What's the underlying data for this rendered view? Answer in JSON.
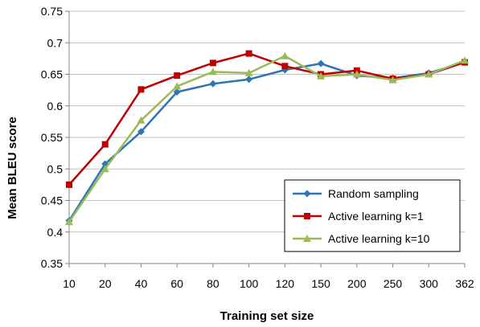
{
  "chart_data": {
    "type": "line",
    "title": "",
    "xlabel": "Training set size",
    "ylabel": "Mean BLEU score",
    "categories": [
      "10",
      "20",
      "40",
      "60",
      "80",
      "100",
      "120",
      "150",
      "200",
      "250",
      "300",
      "362"
    ],
    "yticks": [
      "0.35",
      "0.4",
      "0.45",
      "0.5",
      "0.55",
      "0.6",
      "0.65",
      "0.7",
      "0.75"
    ],
    "ylim": [
      0.35,
      0.75
    ],
    "grid": "horizontal",
    "legend_position": "bottom-right",
    "series": [
      {
        "name": "Random sampling",
        "color": "#2E75B6",
        "marker": "diamond",
        "values": [
          0.418,
          0.508,
          0.559,
          0.622,
          0.635,
          0.642,
          0.657,
          0.667,
          0.648,
          0.644,
          0.652,
          0.669
        ]
      },
      {
        "name": "Active learning k=1",
        "color": "#C00000",
        "marker": "square",
        "values": [
          0.475,
          0.539,
          0.626,
          0.648,
          0.668,
          0.683,
          0.663,
          0.65,
          0.656,
          0.643,
          0.65,
          0.669
        ]
      },
      {
        "name": "Active learning k=10",
        "color": "#9BBB59",
        "marker": "triangle",
        "values": [
          0.416,
          0.5,
          0.577,
          0.631,
          0.654,
          0.652,
          0.679,
          0.647,
          0.65,
          0.641,
          0.65,
          0.672
        ]
      }
    ]
  }
}
